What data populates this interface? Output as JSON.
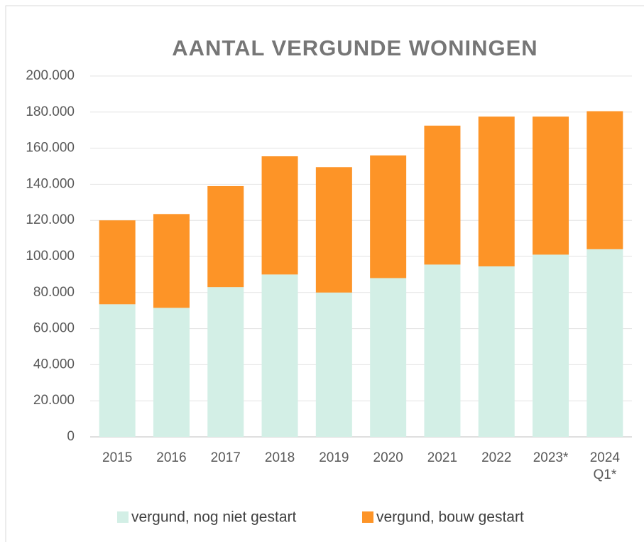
{
  "chart_data": {
    "type": "stacked_bar",
    "title": "AANTAL VERGUNDE WONINGEN",
    "categories": [
      "2015",
      "2016",
      "2017",
      "2018",
      "2019",
      "2020",
      "2021",
      "2022",
      "2023*",
      "2024 Q1*"
    ],
    "series": [
      {
        "name": "vergund, nog niet gestart",
        "color": "#d3efe6",
        "values": [
          73500,
          71500,
          83000,
          90000,
          80000,
          88000,
          95500,
          94500,
          101000,
          104000
        ]
      },
      {
        "name": "vergund, bouw gestart",
        "color": "#fd9427",
        "values": [
          46500,
          52000,
          56000,
          65500,
          69500,
          68000,
          77000,
          83000,
          76500,
          76500
        ]
      }
    ],
    "ylim": [
      0,
      200000
    ],
    "yticks": [
      0,
      {
        "value": 20000,
        "label": "20.000"
      },
      {
        "value": 40000,
        "label": "40.000"
      },
      {
        "value": 60000,
        "label": "60.000"
      },
      {
        "value": 80000,
        "label": "80.000"
      },
      {
        "value": 100000,
        "label": "100.000"
      },
      {
        "value": 120000,
        "label": "120.000"
      },
      {
        "value": 140000,
        "label": "140.000"
      },
      {
        "value": 160000,
        "label": "160.000"
      },
      {
        "value": 180000,
        "label": "180.000"
      },
      {
        "value": 200000,
        "label": "200.000"
      }
    ],
    "grid": true,
    "legend": "bottom"
  }
}
